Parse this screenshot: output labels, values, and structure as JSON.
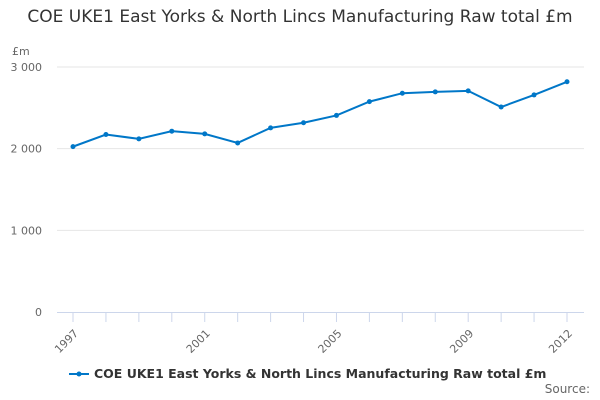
{
  "chart_data": {
    "type": "line",
    "title": "COE UKE1 East Yorks & North Lincs Manufacturing Raw total £m",
    "ylabel": "£m",
    "x": [
      1997,
      1998,
      1999,
      2000,
      2001,
      2002,
      2003,
      2004,
      2005,
      2006,
      2007,
      2008,
      2009,
      2010,
      2011,
      2012
    ],
    "x_tick_labels": [
      "1997",
      "2001",
      "2005",
      "2009",
      "2012"
    ],
    "y_tick_labels": [
      "0",
      "1 000",
      "2 000",
      "3 000"
    ],
    "ylim": [
      0,
      3000
    ],
    "grid": true,
    "legend_placement": "bottom",
    "series": [
      {
        "name": "COE UKE1 East Yorks & North Lincs Manufacturing Raw total £m",
        "color": "#0077c8",
        "values": [
          2025,
          2173,
          2120,
          2214,
          2181,
          2070,
          2255,
          2317,
          2407,
          2576,
          2679,
          2695,
          2708,
          2510,
          2658,
          2819
        ]
      }
    ],
    "source": "Source:"
  }
}
